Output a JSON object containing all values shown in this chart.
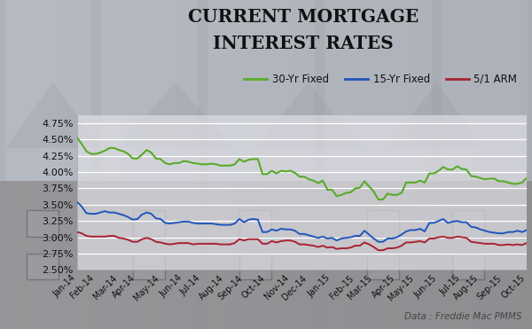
{
  "title_line1": "CURRENT MORTGAGE",
  "title_line2": "INTEREST RATES",
  "source": "Data : Freddie Mac PMMS",
  "line_30yr_color": "#5aaa28",
  "line_15yr_color": "#2255bb",
  "line_arm_color": "#aa2233",
  "ylim": [
    2.5,
    4.875
  ],
  "yticks": [
    2.5,
    2.75,
    3.0,
    3.25,
    3.5,
    3.75,
    4.0,
    4.25,
    4.5,
    4.75
  ],
  "ytick_labels": [
    "2.50%",
    "2.75%",
    "3.00%",
    "3.25%",
    "3.50%",
    "3.75%",
    "4.00%",
    "4.25%",
    "4.50%",
    "4.75%"
  ],
  "xtick_labels": [
    "Jan-14",
    "Feb-14",
    "Mar-14",
    "Apr-14",
    "May-14",
    "Jun-14",
    "Jul-14",
    "Aug-14",
    "Sep-14",
    "Oct-14",
    "Nov-14",
    "Dec-14",
    "Jan-15",
    "Feb-15",
    "Mar-15",
    "Apr-15",
    "May-15",
    "Jun-15",
    "Jul-15",
    "Aug-15",
    "Sep-15",
    "Oct-15"
  ],
  "legend_labels": [
    "30-Yr Fixed",
    "15-Yr Fixed",
    "5/1 ARM"
  ],
  "plot_area_color": [
    0.88,
    0.88,
    0.9,
    0.72
  ],
  "bg_house_color": [
    0.72,
    0.74,
    0.77
  ]
}
